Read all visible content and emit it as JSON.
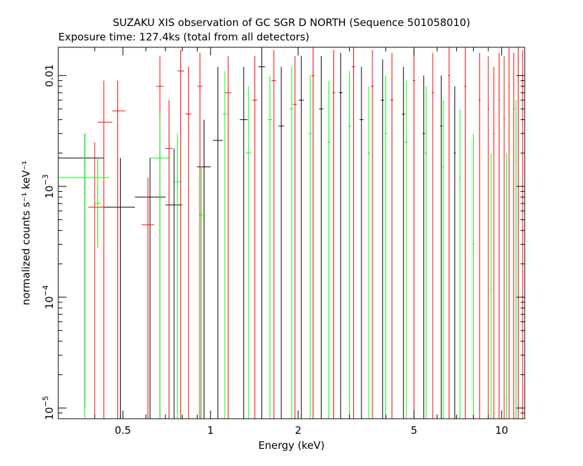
{
  "chart_data": {
    "type": "scatter",
    "title": "SUZAKU XIS observation of GC SGR D NORTH (Sequence 501058010)",
    "subtitle": "Exposure time: 127.4ks (total from all detectors)",
    "xlabel": "Energy (keV)",
    "ylabel": "normalized counts s⁻¹ keV⁻¹",
    "xscale": "log",
    "yscale": "log",
    "xlim": [
      0.3,
      12
    ],
    "ylim": [
      8e-06,
      0.018
    ],
    "x_ticks": [
      {
        "value": 0.5,
        "label": "0.5"
      },
      {
        "value": 1,
        "label": "1"
      },
      {
        "value": 2,
        "label": "2"
      },
      {
        "value": 5,
        "label": "5"
      },
      {
        "value": 10,
        "label": "10"
      }
    ],
    "y_ticks": [
      {
        "value": 1e-05,
        "mantissa": "10",
        "exp": "−5"
      },
      {
        "value": 0.0001,
        "mantissa": "10",
        "exp": "−4"
      },
      {
        "value": 0.001,
        "mantissa": "10",
        "exp": "−3"
      },
      {
        "value": 0.01,
        "mantissa": "0.01",
        "exp": ""
      }
    ],
    "grid": false,
    "legend": "none",
    "series": [
      {
        "color": "#000000",
        "points": [
          {
            "x": 0.37,
            "xlo": 0.3,
            "xhi": 0.43,
            "y": 0.0018,
            "ylo": 1e-05,
            "yhi": 0.003
          },
          {
            "x": 0.49,
            "xlo": 0.43,
            "xhi": 0.55,
            "y": 0.00065,
            "ylo": 8e-06,
            "yhi": 0.0018
          },
          {
            "x": 0.62,
            "xlo": 0.55,
            "xhi": 0.7,
            "y": 0.0008,
            "ylo": 8e-06,
            "yhi": 0.0018
          },
          {
            "x": 0.75,
            "xlo": 0.7,
            "xhi": 0.8,
            "y": 0.00068,
            "ylo": 8e-06,
            "yhi": 0.0022
          },
          {
            "x": 0.95,
            "xlo": 0.9,
            "xhi": 1.0,
            "y": 0.0015,
            "ylo": 8e-06,
            "yhi": 0.004
          },
          {
            "x": 1.06,
            "xlo": 1.02,
            "xhi": 1.1,
            "y": 0.0026,
            "ylo": 8e-06,
            "yhi": 0.012
          },
          {
            "x": 1.3,
            "xlo": 1.26,
            "xhi": 1.34,
            "y": 0.004,
            "ylo": 8e-06,
            "yhi": 0.012
          },
          {
            "x": 1.5,
            "xlo": 1.46,
            "xhi": 1.54,
            "y": 0.012,
            "ylo": 8e-06,
            "yhi": 0.018
          },
          {
            "x": 1.75,
            "xlo": 1.71,
            "xhi": 1.79,
            "y": 0.0035,
            "ylo": 8e-06,
            "yhi": 0.012
          },
          {
            "x": 2.05,
            "xlo": 2.01,
            "xhi": 2.09,
            "y": 0.006,
            "ylo": 8e-06,
            "yhi": 0.015
          },
          {
            "x": 2.4,
            "xlo": 2.36,
            "xhi": 2.44,
            "y": 0.005,
            "ylo": 8e-06,
            "yhi": 0.015
          },
          {
            "x": 2.8,
            "xlo": 2.76,
            "xhi": 2.84,
            "y": 0.007,
            "ylo": 8e-06,
            "yhi": 0.016
          },
          {
            "x": 3.3,
            "xlo": 3.25,
            "xhi": 3.35,
            "y": 0.004,
            "ylo": 8e-06,
            "yhi": 0.012
          },
          {
            "x": 3.9,
            "xlo": 3.85,
            "xhi": 3.95,
            "y": 0.006,
            "ylo": 8e-06,
            "yhi": 0.014
          },
          {
            "x": 4.6,
            "xlo": 4.55,
            "xhi": 4.65,
            "y": 0.0045,
            "ylo": 8e-06,
            "yhi": 0.012
          },
          {
            "x": 5.4,
            "xlo": 5.35,
            "xhi": 5.45,
            "y": 0.003,
            "ylo": 8e-06,
            "yhi": 0.01
          },
          {
            "x": 6.2,
            "xlo": 6.15,
            "xhi": 6.25,
            "y": 0.0035,
            "ylo": 8e-06,
            "yhi": 0.01
          },
          {
            "x": 6.9,
            "xlo": 6.85,
            "xhi": 6.95,
            "y": 0.002,
            "ylo": 8e-06,
            "yhi": 0.008
          }
        ]
      },
      {
        "color": "#ff0000",
        "points": [
          {
            "x": 0.4,
            "xlo": 0.38,
            "xhi": 0.43,
            "y": 0.00065,
            "ylo": 8e-06,
            "yhi": 0.0025
          },
          {
            "x": 0.43,
            "xlo": 0.41,
            "xhi": 0.46,
            "y": 0.0038,
            "ylo": 8e-06,
            "yhi": 0.009
          },
          {
            "x": 0.48,
            "xlo": 0.46,
            "xhi": 0.51,
            "y": 0.0048,
            "ylo": 8e-06,
            "yhi": 0.009
          },
          {
            "x": 0.61,
            "xlo": 0.58,
            "xhi": 0.64,
            "y": 0.00045,
            "ylo": 8e-06,
            "yhi": 0.0012
          },
          {
            "x": 0.67,
            "xlo": 0.65,
            "xhi": 0.69,
            "y": 0.008,
            "ylo": 8e-06,
            "yhi": 0.015
          },
          {
            "x": 0.72,
            "xlo": 0.7,
            "xhi": 0.74,
            "y": 0.0022,
            "ylo": 8e-06,
            "yhi": 0.006
          },
          {
            "x": 0.79,
            "xlo": 0.77,
            "xhi": 0.81,
            "y": 0.011,
            "ylo": 8e-06,
            "yhi": 0.017
          },
          {
            "x": 0.84,
            "xlo": 0.82,
            "xhi": 0.86,
            "y": 0.0045,
            "ylo": 8e-06,
            "yhi": 0.012
          },
          {
            "x": 0.92,
            "xlo": 0.9,
            "xhi": 0.94,
            "y": 0.008,
            "ylo": 8e-06,
            "yhi": 0.016
          },
          {
            "x": 1.15,
            "xlo": 1.12,
            "xhi": 1.18,
            "y": 0.007,
            "ylo": 8e-06,
            "yhi": 0.015
          },
          {
            "x": 1.42,
            "xlo": 1.39,
            "xhi": 1.45,
            "y": 0.006,
            "ylo": 8e-06,
            "yhi": 0.015
          },
          {
            "x": 1.65,
            "xlo": 1.62,
            "xhi": 1.68,
            "y": 0.009,
            "ylo": 8e-06,
            "yhi": 0.017
          },
          {
            "x": 1.95,
            "xlo": 1.92,
            "xhi": 1.98,
            "y": 0.0055,
            "ylo": 8e-06,
            "yhi": 0.015
          },
          {
            "x": 2.25,
            "xlo": 2.22,
            "xhi": 2.28,
            "y": 0.01,
            "ylo": 8e-06,
            "yhi": 0.018
          },
          {
            "x": 2.65,
            "xlo": 2.62,
            "xhi": 2.68,
            "y": 0.007,
            "ylo": 8e-06,
            "yhi": 0.017
          },
          {
            "x": 3.1,
            "xlo": 3.06,
            "xhi": 3.14,
            "y": 0.012,
            "ylo": 8e-06,
            "yhi": 0.018
          },
          {
            "x": 3.6,
            "xlo": 3.56,
            "xhi": 3.64,
            "y": 0.008,
            "ylo": 8e-06,
            "yhi": 0.017
          },
          {
            "x": 4.2,
            "xlo": 4.15,
            "xhi": 4.25,
            "y": 0.006,
            "ylo": 8e-06,
            "yhi": 0.016
          },
          {
            "x": 5.0,
            "xlo": 4.95,
            "xhi": 5.05,
            "y": 0.009,
            "ylo": 8e-06,
            "yhi": 0.017
          },
          {
            "x": 5.8,
            "xlo": 5.75,
            "xhi": 5.85,
            "y": 0.007,
            "ylo": 8e-06,
            "yhi": 0.016
          },
          {
            "x": 6.6,
            "xlo": 6.55,
            "xhi": 6.65,
            "y": 0.01,
            "ylo": 8e-06,
            "yhi": 0.018
          },
          {
            "x": 7.5,
            "xlo": 7.44,
            "xhi": 7.56,
            "y": 0.008,
            "ylo": 8e-06,
            "yhi": 0.018
          },
          {
            "x": 8.4,
            "xlo": 8.34,
            "xhi": 8.46,
            "y": 0.006,
            "ylo": 8e-06,
            "yhi": 0.016
          },
          {
            "x": 9.0,
            "xlo": 8.95,
            "xhi": 9.05,
            "y": 0.005,
            "ylo": 8e-06,
            "yhi": 0.015
          },
          {
            "x": 9.4,
            "xlo": 9.35,
            "xhi": 9.45,
            "y": 0.003,
            "ylo": 8e-06,
            "yhi": 0.012
          },
          {
            "x": 9.8,
            "xlo": 9.75,
            "xhi": 9.85,
            "y": 0.006,
            "ylo": 8e-06,
            "yhi": 0.016
          },
          {
            "x": 10.2,
            "xlo": 10.15,
            "xhi": 10.25,
            "y": 0.004,
            "ylo": 8e-06,
            "yhi": 0.015
          },
          {
            "x": 10.6,
            "xlo": 10.55,
            "xhi": 10.65,
            "y": 0.008,
            "ylo": 8e-06,
            "yhi": 0.018
          },
          {
            "x": 11.0,
            "xlo": 10.95,
            "xhi": 11.05,
            "y": 0.005,
            "ylo": 8e-06,
            "yhi": 0.016
          },
          {
            "x": 11.4,
            "xlo": 11.35,
            "xhi": 11.45,
            "y": 0.009,
            "ylo": 8e-06,
            "yhi": 0.018
          },
          {
            "x": 11.8,
            "xlo": 11.75,
            "xhi": 11.85,
            "y": 0.006,
            "ylo": 8e-06,
            "yhi": 0.017
          }
        ]
      },
      {
        "color": "#00ff00",
        "points": [
          {
            "x": 0.37,
            "xlo": 0.3,
            "xhi": 0.45,
            "y": 0.0012,
            "ylo": 8e-06,
            "yhi": 0.003
          },
          {
            "x": 0.41,
            "xlo": 0.4,
            "xhi": 0.42,
            "y": 0.0007,
            "ylo": 0.00028,
            "yhi": 0.0018
          },
          {
            "x": 0.67,
            "xlo": 0.62,
            "xhi": 0.73,
            "y": 0.0018,
            "ylo": 8e-06,
            "yhi": 0.0045
          },
          {
            "x": 0.77,
            "xlo": 0.74,
            "xhi": 0.8,
            "y": 0.0011,
            "ylo": 8e-06,
            "yhi": 0.003
          },
          {
            "x": 0.93,
            "xlo": 0.91,
            "xhi": 0.96,
            "y": 0.00055,
            "ylo": 8e-06,
            "yhi": 0.0015
          },
          {
            "x": 1.12,
            "xlo": 1.1,
            "xhi": 1.14,
            "y": 0.0045,
            "ylo": 8e-06,
            "yhi": 0.011
          },
          {
            "x": 1.35,
            "xlo": 1.32,
            "xhi": 1.38,
            "y": 0.002,
            "ylo": 8e-06,
            "yhi": 0.008
          },
          {
            "x": 1.6,
            "xlo": 1.57,
            "xhi": 1.63,
            "y": 0.004,
            "ylo": 8e-06,
            "yhi": 0.01
          },
          {
            "x": 1.9,
            "xlo": 1.87,
            "xhi": 1.93,
            "y": 0.005,
            "ylo": 8e-06,
            "yhi": 0.012
          },
          {
            "x": 2.2,
            "xlo": 2.17,
            "xhi": 2.23,
            "y": 0.003,
            "ylo": 8e-06,
            "yhi": 0.01
          },
          {
            "x": 2.55,
            "xlo": 2.52,
            "xhi": 2.58,
            "y": 0.0025,
            "ylo": 8e-06,
            "yhi": 0.009
          },
          {
            "x": 3.0,
            "xlo": 2.96,
            "xhi": 3.04,
            "y": 0.0035,
            "ylo": 8e-06,
            "yhi": 0.011
          },
          {
            "x": 3.5,
            "xlo": 3.46,
            "xhi": 3.54,
            "y": 0.002,
            "ylo": 8e-06,
            "yhi": 0.008
          },
          {
            "x": 4.0,
            "xlo": 3.95,
            "xhi": 4.05,
            "y": 0.003,
            "ylo": 8e-06,
            "yhi": 0.01
          },
          {
            "x": 4.7,
            "xlo": 4.65,
            "xhi": 4.75,
            "y": 0.0025,
            "ylo": 8e-06,
            "yhi": 0.009
          },
          {
            "x": 5.5,
            "xlo": 5.45,
            "xhi": 5.55,
            "y": 0.002,
            "ylo": 8e-06,
            "yhi": 0.008
          },
          {
            "x": 6.3,
            "xlo": 6.25,
            "xhi": 6.35,
            "y": 0.0015,
            "ylo": 8e-06,
            "yhi": 0.006
          },
          {
            "x": 7.2,
            "xlo": 7.15,
            "xhi": 7.25,
            "y": 0.0012,
            "ylo": 8e-06,
            "yhi": 0.005
          },
          {
            "x": 8.0,
            "xlo": 7.95,
            "xhi": 8.05,
            "y": 0.0003,
            "ylo": 8e-06,
            "yhi": 0.003
          },
          {
            "x": 9.2,
            "xlo": 9.15,
            "xhi": 9.25,
            "y": 0.00012,
            "ylo": 8e-06,
            "yhi": 0.002
          },
          {
            "x": 10.4,
            "xlo": 10.35,
            "xhi": 10.45,
            "y": 1.2e-05,
            "ylo": 8e-06,
            "yhi": 0.002
          },
          {
            "x": 11.2,
            "xlo": 11.15,
            "xhi": 11.25,
            "y": 0.0017,
            "ylo": 8e-06,
            "yhi": 0.006
          }
        ]
      }
    ]
  }
}
